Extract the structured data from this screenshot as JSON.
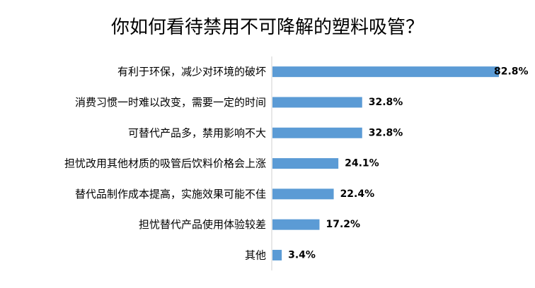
{
  "chart_data": {
    "type": "bar",
    "orientation": "horizontal",
    "title": "你如何看待禁用不可降解的塑料吸管？",
    "categories": [
      "有利于环保，减少对环境的破坏",
      "消费习惯一时难以改变，需要一定的时间",
      "可替代产品多，禁用影响不大",
      "担忧改用其他材质的吸管后饮料价格会上涨",
      "替代品制作成本提高，实施效果可能不佳",
      "担忧替代产品使用体验较差",
      "其他"
    ],
    "values": [
      82.8,
      32.8,
      32.8,
      24.1,
      22.4,
      17.2,
      3.4
    ],
    "value_labels": [
      "82.8%",
      "32.8%",
      "32.8%",
      "24.1%",
      "22.4%",
      "17.2%",
      "3.4%"
    ],
    "xlim": [
      0,
      82.8
    ],
    "bar_color": "#5b9bd5",
    "grid": false,
    "legend": "none"
  }
}
